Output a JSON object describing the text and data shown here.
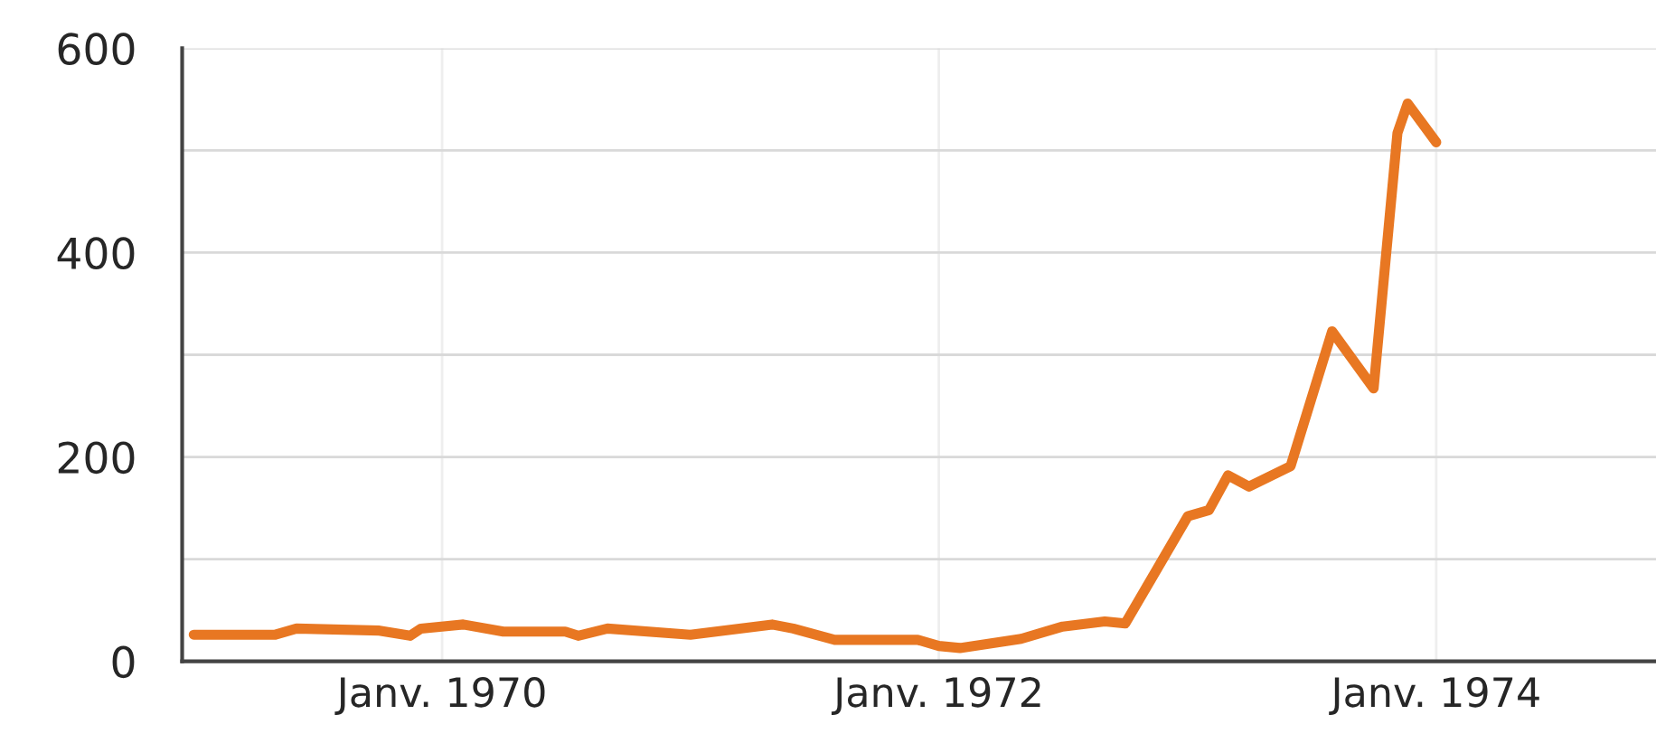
{
  "chart_data": {
    "type": "line",
    "x": [
      "1969-01",
      "1969-05",
      "1969-06",
      "1969-10",
      "1969-11-15",
      "1969-12",
      "1970-02",
      "1970-04",
      "1970-07",
      "1970-07-20",
      "1970-09",
      "1971-01",
      "1971-05",
      "1971-06",
      "1971-08",
      "1971-12",
      "1972-01",
      "1972-02",
      "1972-05",
      "1972-07",
      "1972-09",
      "1972-10",
      "1973-01",
      "1973-02",
      "1973-03",
      "1973-04",
      "1973-06",
      "1973-08",
      "1973-10",
      "1973-11-05",
      "1973-11-20",
      "1974-01"
    ],
    "series": [
      {
        "color": "#e87722",
        "values": [
          26,
          26,
          32,
          30,
          25,
          32,
          36,
          29,
          29,
          25,
          32,
          26,
          36,
          32,
          21,
          21,
          15,
          13,
          22,
          34,
          39,
          37,
          142,
          148,
          182,
          171,
          191,
          323,
          267,
          517,
          546,
          508
        ]
      }
    ],
    "xlim": [
      "1968-12-15",
      "1974-11-20"
    ],
    "xticks": [
      {
        "value": "1970-01-01",
        "label": "Janv. 1970"
      },
      {
        "value": "1972-01-01",
        "label": "Janv. 1972"
      },
      {
        "value": "1974-01-01",
        "label": "Janv. 1974"
      }
    ],
    "ylim": [
      0,
      600
    ],
    "yticks": [
      0,
      {
        "value": 100,
        "label": null
      },
      200,
      {
        "value": 300,
        "label": null
      },
      400,
      {
        "value": 500,
        "label": null
      },
      600
    ],
    "grid": true,
    "marker": "none",
    "line_style": "solid"
  }
}
